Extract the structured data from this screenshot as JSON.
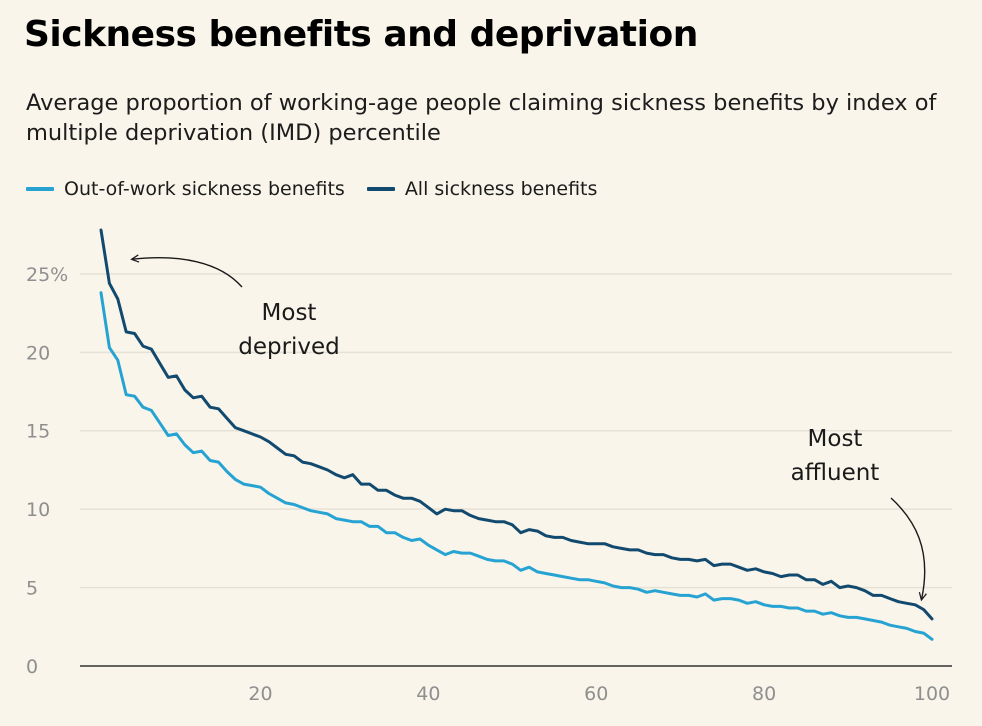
{
  "chart_data": {
    "type": "line",
    "title": "Sickness benefits and deprivation",
    "subtitle": "Average proportion of working-age people claiming sickness benefits by index of multiple deprivation (IMD) percentile",
    "xlabel": "",
    "ylabel": "",
    "xlim": [
      1,
      100
    ],
    "ylim": [
      0,
      27.8
    ],
    "x_ticks": [
      20,
      40,
      60,
      80,
      100
    ],
    "y_ticks": [
      0,
      5,
      10,
      15,
      20,
      25
    ],
    "y_tick_labels": [
      "0",
      "5",
      "10",
      "15",
      "20",
      "25%"
    ],
    "grid": "horizontal",
    "legend_position": "top-left",
    "x": [
      1,
      2,
      3,
      4,
      5,
      6,
      7,
      8,
      9,
      10,
      11,
      12,
      13,
      14,
      15,
      16,
      17,
      18,
      19,
      20,
      21,
      22,
      23,
      24,
      25,
      26,
      27,
      28,
      29,
      30,
      31,
      32,
      33,
      34,
      35,
      36,
      37,
      38,
      39,
      40,
      41,
      42,
      43,
      44,
      45,
      46,
      47,
      48,
      49,
      50,
      51,
      52,
      53,
      54,
      55,
      56,
      57,
      58,
      59,
      60,
      61,
      62,
      63,
      64,
      65,
      66,
      67,
      68,
      69,
      70,
      71,
      72,
      73,
      74,
      75,
      76,
      77,
      78,
      79,
      80,
      81,
      82,
      83,
      84,
      85,
      86,
      87,
      88,
      89,
      90,
      91,
      92,
      93,
      94,
      95,
      96,
      97,
      98,
      99,
      100
    ],
    "series": [
      {
        "name": "Out-of-work sickness benefits",
        "color": "#27a3d3",
        "values": [
          23.8,
          20.3,
          19.5,
          17.3,
          17.2,
          16.5,
          16.3,
          15.5,
          14.7,
          14.8,
          14.1,
          13.6,
          13.7,
          13.1,
          13.0,
          12.4,
          11.9,
          11.6,
          11.5,
          11.4,
          11.0,
          10.7,
          10.4,
          10.3,
          10.1,
          9.9,
          9.8,
          9.7,
          9.4,
          9.3,
          9.2,
          9.2,
          8.9,
          8.9,
          8.5,
          8.5,
          8.2,
          8.0,
          8.1,
          7.7,
          7.4,
          7.1,
          7.3,
          7.2,
          7.2,
          7.0,
          6.8,
          6.7,
          6.7,
          6.5,
          6.1,
          6.3,
          6.0,
          5.9,
          5.8,
          5.7,
          5.6,
          5.5,
          5.5,
          5.4,
          5.3,
          5.1,
          5.0,
          5.0,
          4.9,
          4.7,
          4.8,
          4.7,
          4.6,
          4.5,
          4.5,
          4.4,
          4.6,
          4.2,
          4.3,
          4.3,
          4.2,
          4.0,
          4.1,
          3.9,
          3.8,
          3.8,
          3.7,
          3.7,
          3.5,
          3.5,
          3.3,
          3.4,
          3.2,
          3.1,
          3.1,
          3.0,
          2.9,
          2.8,
          2.6,
          2.5,
          2.4,
          2.2,
          2.1,
          1.7
        ]
      },
      {
        "name": "All sickness benefits",
        "color": "#12496f",
        "values": [
          27.8,
          24.4,
          23.4,
          21.3,
          21.2,
          20.4,
          20.2,
          19.3,
          18.4,
          18.5,
          17.6,
          17.1,
          17.2,
          16.5,
          16.4,
          15.8,
          15.2,
          15.0,
          14.8,
          14.6,
          14.3,
          13.9,
          13.5,
          13.4,
          13.0,
          12.9,
          12.7,
          12.5,
          12.2,
          12.0,
          12.2,
          11.6,
          11.6,
          11.2,
          11.2,
          10.9,
          10.7,
          10.7,
          10.5,
          10.1,
          9.7,
          10.0,
          9.9,
          9.9,
          9.6,
          9.4,
          9.3,
          9.2,
          9.2,
          9.0,
          8.5,
          8.7,
          8.6,
          8.3,
          8.2,
          8.2,
          8.0,
          7.9,
          7.8,
          7.8,
          7.8,
          7.6,
          7.5,
          7.4,
          7.4,
          7.2,
          7.1,
          7.1,
          6.9,
          6.8,
          6.8,
          6.7,
          6.8,
          6.4,
          6.5,
          6.5,
          6.3,
          6.1,
          6.2,
          6.0,
          5.9,
          5.7,
          5.8,
          5.8,
          5.5,
          5.5,
          5.2,
          5.4,
          5.0,
          5.1,
          5.0,
          4.8,
          4.5,
          4.5,
          4.3,
          4.1,
          4.0,
          3.9,
          3.6,
          3.0
        ]
      }
    ],
    "annotations": [
      {
        "lines": [
          "Most",
          "deprived"
        ],
        "target_x": 2,
        "target_y": 26
      },
      {
        "lines": [
          "Most",
          "affluent"
        ],
        "target_x": 99,
        "target_y": 4.2
      }
    ]
  }
}
